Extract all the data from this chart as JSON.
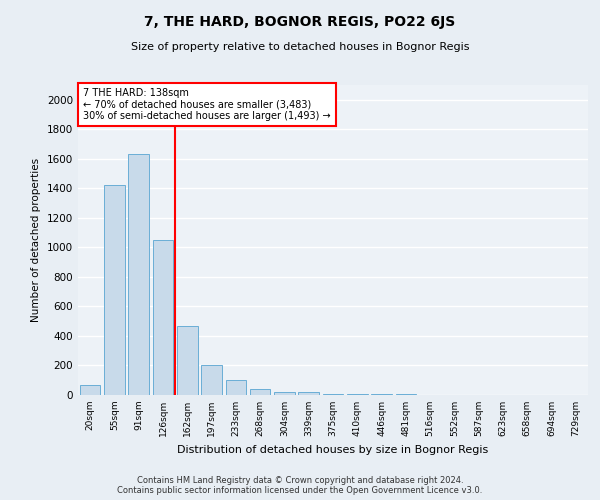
{
  "title": "7, THE HARD, BOGNOR REGIS, PO22 6JS",
  "subtitle": "Size of property relative to detached houses in Bognor Regis",
  "xlabel": "Distribution of detached houses by size in Bognor Regis",
  "ylabel": "Number of detached properties",
  "categories": [
    "20sqm",
    "55sqm",
    "91sqm",
    "126sqm",
    "162sqm",
    "197sqm",
    "233sqm",
    "268sqm",
    "304sqm",
    "339sqm",
    "375sqm",
    "410sqm",
    "446sqm",
    "481sqm",
    "516sqm",
    "552sqm",
    "587sqm",
    "623sqm",
    "658sqm",
    "694sqm",
    "729sqm"
  ],
  "values": [
    70,
    1420,
    1630,
    1050,
    470,
    200,
    100,
    40,
    20,
    20,
    10,
    5,
    5,
    5,
    3,
    3,
    3,
    2,
    2,
    2,
    2
  ],
  "bar_color": "#c8daea",
  "bar_edge_color": "#6aaed6",
  "vline_x": 3.5,
  "vline_color": "red",
  "annotation_text": "7 THE HARD: 138sqm\n← 70% of detached houses are smaller (3,483)\n30% of semi-detached houses are larger (1,493) →",
  "annotation_box_color": "red",
  "ylim": [
    0,
    2100
  ],
  "yticks": [
    0,
    200,
    400,
    600,
    800,
    1000,
    1200,
    1400,
    1600,
    1800,
    2000
  ],
  "footer_text": "Contains HM Land Registry data © Crown copyright and database right 2024.\nContains public sector information licensed under the Open Government Licence v3.0.",
  "bg_color": "#e8eef4",
  "plot_bg_color": "#edf2f7"
}
